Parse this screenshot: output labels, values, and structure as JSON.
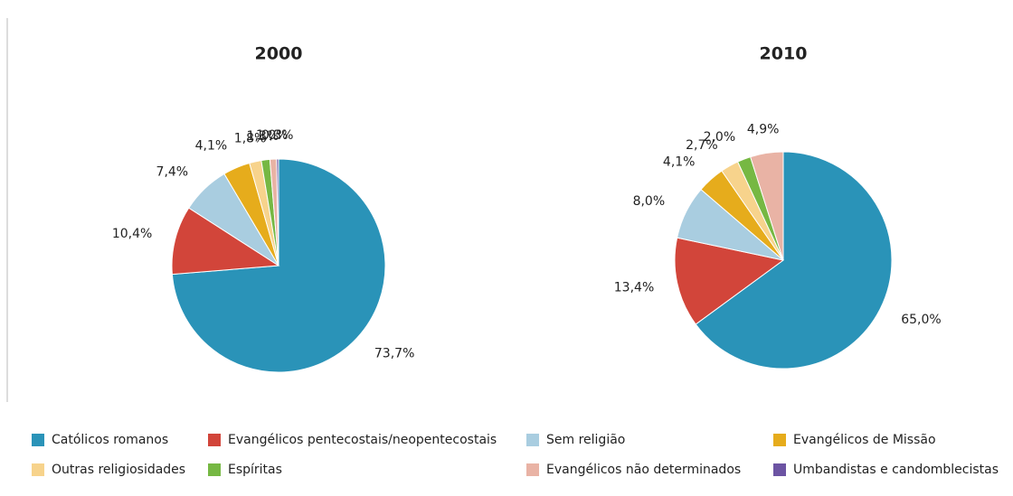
{
  "chart_data": {
    "type": "pie",
    "categories": [
      "Católicos romanos",
      "Evangélicos pentecostais/neopentecostais",
      "Sem religião",
      "Evangélicos de Missão",
      "Outras religiosidades",
      "Espíritas",
      "Evangélicos não determinados",
      "Umbandistas e candomblecistas"
    ],
    "colors": [
      "#2a93b8",
      "#d2453a",
      "#a9cde0",
      "#e6ac1c",
      "#f7d38c",
      "#76b843",
      "#e9b3a5",
      "#6c54a3"
    ],
    "series": [
      {
        "name": "2000",
        "values": [
          73.7,
          10.4,
          7.4,
          4.1,
          1.8,
          1.3,
          1.0,
          0.3
        ],
        "value_labels": [
          "73,7%",
          "10,4%",
          "7,4%",
          "4,1%",
          "1,8%",
          "1,3%",
          "1,0%",
          "0,3%"
        ]
      },
      {
        "name": "2010",
        "values": [
          65.0,
          13.4,
          8.0,
          4.1,
          2.7,
          2.0,
          4.9,
          null
        ],
        "value_labels": [
          "65,0%",
          "13,4%",
          "8,0%",
          "4,1%",
          "2,7%",
          "2,0%",
          "4,9%",
          null
        ]
      }
    ]
  }
}
